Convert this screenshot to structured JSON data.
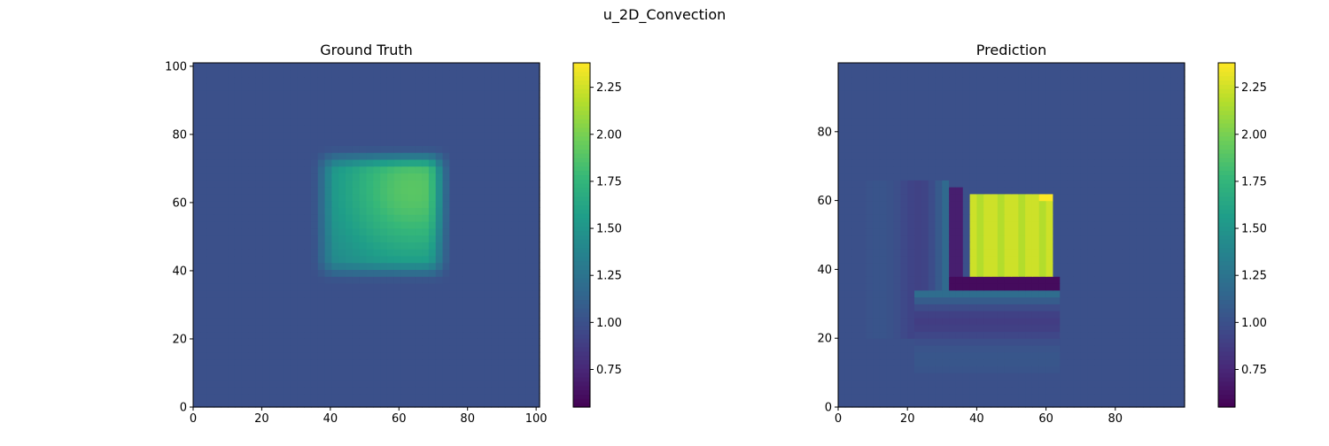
{
  "figure": {
    "suptitle": "u_2D_Convection"
  },
  "colors": {
    "background_field": "#3b528b",
    "axes_edge": "#000000",
    "viridis": [
      "#440154",
      "#482878",
      "#3e4989",
      "#31688e",
      "#26828e",
      "#1f9e89",
      "#35b779",
      "#6ece58",
      "#b5de2b",
      "#fde725"
    ]
  },
  "chart_data": [
    {
      "type": "heatmap",
      "title": "Ground Truth",
      "xlim": [
        0,
        101
      ],
      "ylim": [
        0,
        101
      ],
      "xticks": [
        "0",
        "20",
        "40",
        "60",
        "80",
        "100"
      ],
      "yticks": [
        "0",
        "20",
        "40",
        "60",
        "80",
        "100"
      ],
      "colorbar": {
        "vmin": 0.55,
        "vmax": 2.38,
        "ticks": [
          "0.75",
          "1.00",
          "1.25",
          "1.50",
          "1.75",
          "2.00",
          "2.25"
        ]
      },
      "field": {
        "background": 1.0,
        "square_x": [
          38,
          72
        ],
        "square_y": [
          40,
          73
        ],
        "peak": 1.9,
        "peak_center": [
          64,
          64
        ],
        "edge_blur": 4
      }
    },
    {
      "type": "heatmap",
      "title": "Prediction",
      "xlim": [
        0,
        100
      ],
      "ylim": [
        0,
        100
      ],
      "xticks": [
        "0",
        "20",
        "40",
        "60",
        "80"
      ],
      "yticks": [
        "0",
        "20",
        "40",
        "60",
        "80"
      ],
      "colorbar": {
        "vmin": 0.55,
        "vmax": 2.38,
        "ticks": [
          "0.75",
          "1.00",
          "1.25",
          "1.50",
          "1.75",
          "2.00",
          "2.25"
        ]
      },
      "field": {
        "background": 1.0,
        "square_x": [
          38,
          61
        ],
        "square_y": [
          39,
          62
        ],
        "peak": 2.1,
        "max": 2.38,
        "dip": 0.6,
        "dip_row": [
          35,
          37
        ],
        "dip_col": [
          33,
          35
        ],
        "ripple_wavelength": 2.2
      }
    }
  ]
}
